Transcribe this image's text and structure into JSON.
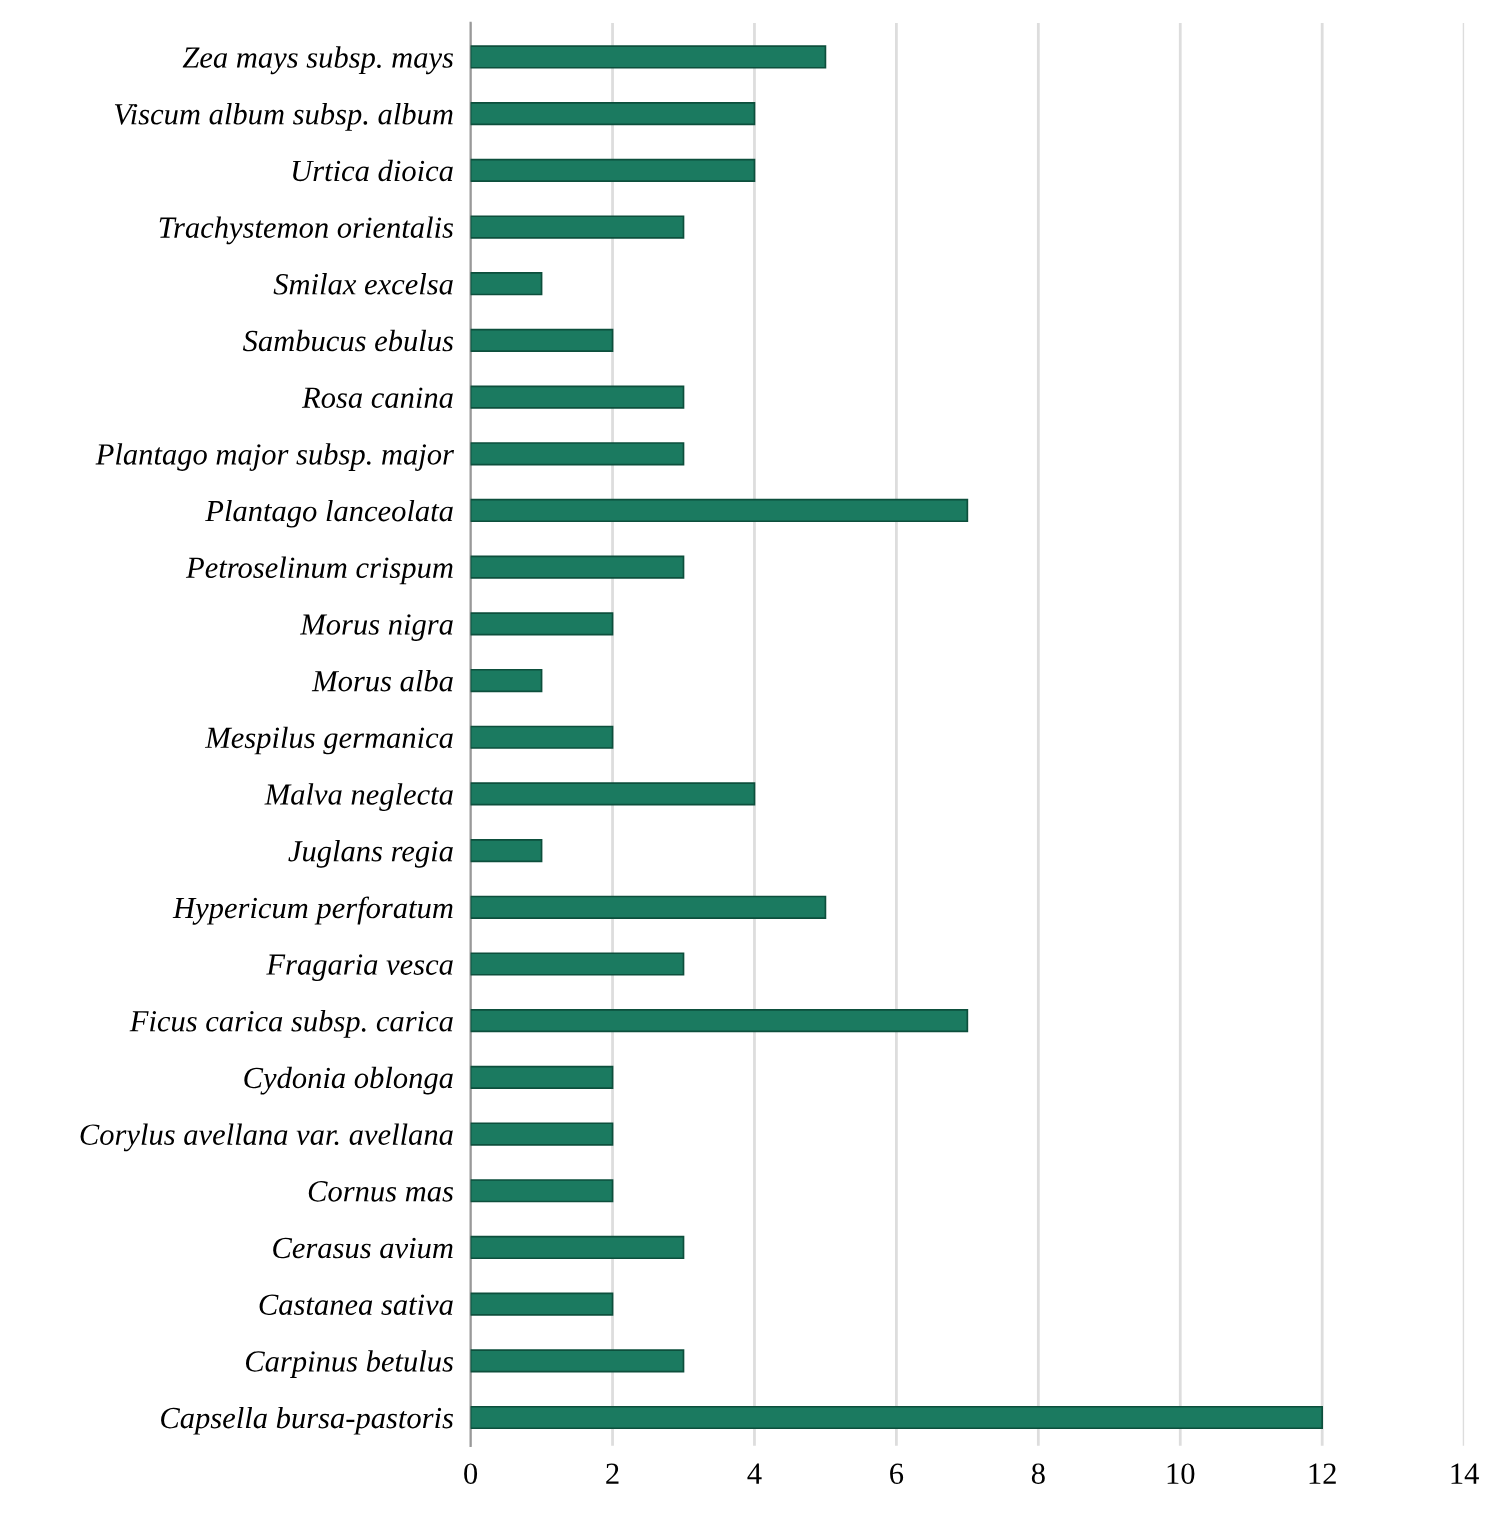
{
  "chart_data": {
    "type": "bar",
    "orientation": "horizontal",
    "categories": [
      "Zea mays subsp. mays",
      "Viscum album subsp. album",
      "Urtica dioica",
      "Trachystemon orientalis",
      "Smilax excelsa",
      "Sambucus ebulus",
      "Rosa canina",
      "Plantago major subsp. major",
      "Plantago lanceolata",
      "Petroselinum crispum",
      "Morus nigra",
      "Morus alba",
      "Mespilus germanica",
      "Malva neglecta",
      "Juglans regia",
      "Hypericum perforatum",
      "Fragaria vesca",
      "Ficus carica subsp. carica",
      "Cydonia oblonga",
      "Corylus avellana var. avellana",
      "Cornus mas",
      "Cerasus avium",
      "Castanea sativa",
      "Carpinus betulus",
      "Capsella bursa-pastoris"
    ],
    "values": [
      5,
      4,
      4,
      3,
      1,
      2,
      3,
      3,
      7,
      3,
      2,
      1,
      2,
      4,
      1,
      5,
      3,
      7,
      2,
      2,
      2,
      3,
      2,
      3,
      12
    ],
    "color": "#1b7a60",
    "xlim": [
      0,
      14
    ],
    "xticks": [
      0,
      2,
      4,
      6,
      8,
      10,
      12,
      14
    ],
    "grid": "x"
  }
}
